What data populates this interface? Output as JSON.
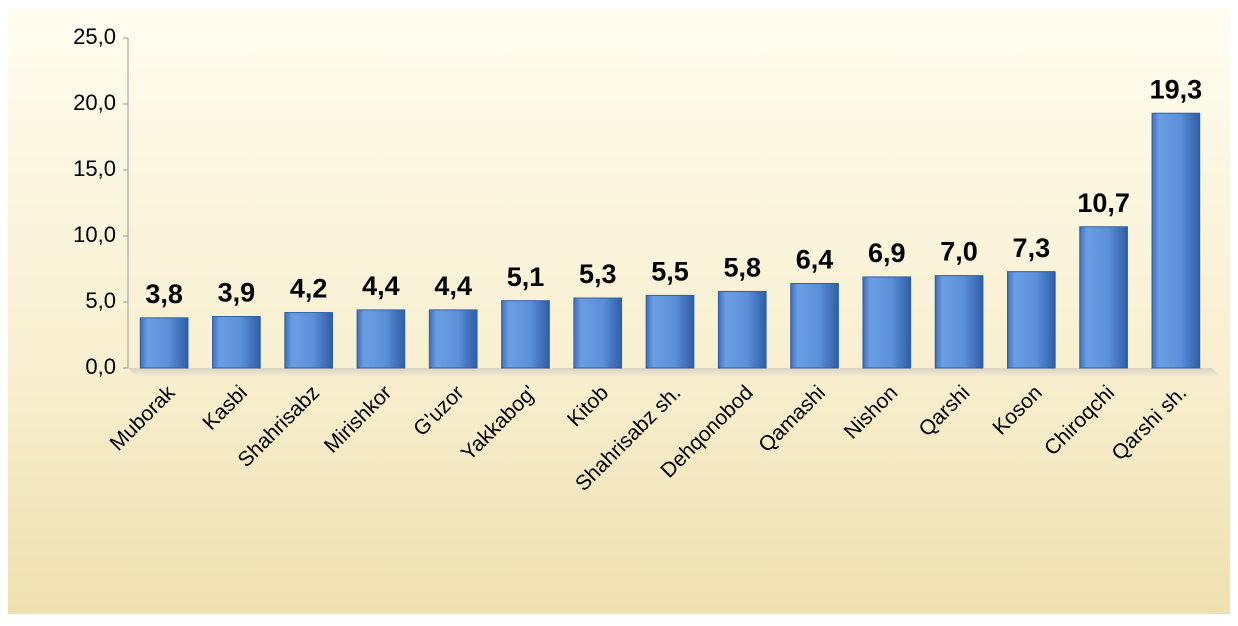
{
  "chart_data": {
    "type": "bar",
    "categories": [
      "Muborak",
      "Kasbi",
      "Shahrisabz",
      "Mirishkor",
      "G'uzor",
      "Yakkabog'",
      "Kitob",
      "Shahrisabz sh.",
      "Dehqonobod",
      "Qamashi",
      "Nishon",
      "Qarshi",
      "Koson",
      "Chiroqchi",
      "Qarshi sh."
    ],
    "values": [
      3.8,
      3.9,
      4.2,
      4.4,
      4.4,
      5.1,
      5.3,
      5.5,
      5.8,
      6.4,
      6.9,
      7.0,
      7.3,
      10.7,
      19.3
    ],
    "value_labels": [
      "3,8",
      "3,9",
      "4,2",
      "4,4",
      "4,4",
      "5,1",
      "5,3",
      "5,5",
      "5,8",
      "6,4",
      "6,9",
      "7,0",
      "7,3",
      "10,7",
      "19,3"
    ],
    "color": "#5b8fd8",
    "ylim": [
      0,
      25
    ],
    "yticks": [
      {
        "value": 0,
        "label": "0,0"
      },
      {
        "value": 5,
        "label": "5,0"
      },
      {
        "value": 10,
        "label": "10,0"
      },
      {
        "value": 15,
        "label": "15,0"
      },
      {
        "value": 20,
        "label": "20,0"
      },
      {
        "value": 25,
        "label": "25,0"
      }
    ],
    "grid": false
  }
}
